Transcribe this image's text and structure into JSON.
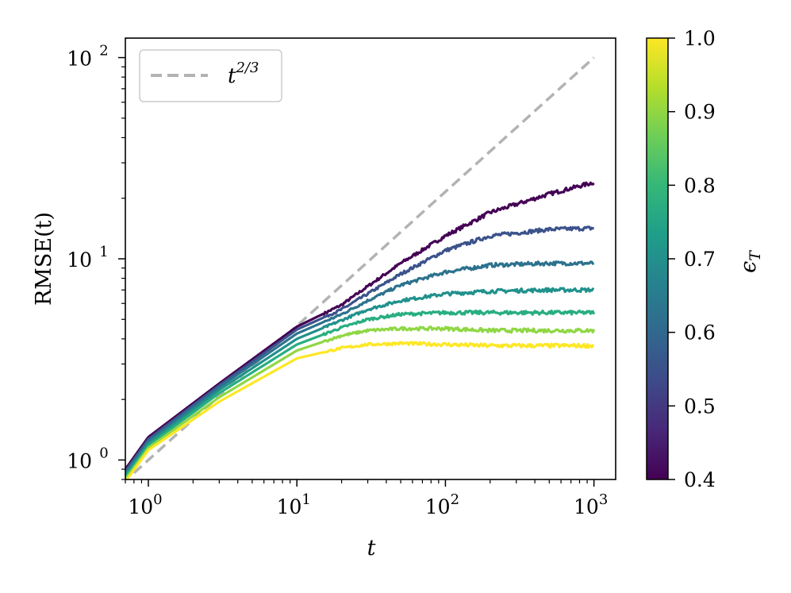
{
  "chart_data": {
    "type": "line",
    "xscale": "log",
    "yscale": "log",
    "xlim": [
      0.7,
      1400
    ],
    "ylim": [
      0.8,
      125
    ],
    "xlabel": "t",
    "ylabel": "RMSE(t)",
    "xticks": [
      {
        "value": 1,
        "label": "10",
        "exp": "0"
      },
      {
        "value": 10,
        "label": "10",
        "exp": "1"
      },
      {
        "value": 100,
        "label": "10",
        "exp": "2"
      },
      {
        "value": 1000,
        "label": "10",
        "exp": "3"
      }
    ],
    "yticks": [
      {
        "value": 1,
        "label": "10",
        "exp": "0"
      },
      {
        "value": 10,
        "label": "10",
        "exp": "1"
      },
      {
        "value": 100,
        "label": "10",
        "exp": "2"
      }
    ],
    "legend": {
      "position": "top-left",
      "entries": [
        {
          "label": "t",
          "exp": "2/3",
          "color": "#b3b3b3",
          "style": "dashed"
        }
      ]
    },
    "reference_line": {
      "name": "t^(2/3)",
      "exponent": 0.6667,
      "color": "#b3b3b3",
      "style": "dashed",
      "x": [
        0.8,
        1000
      ]
    },
    "colorbar": {
      "label": "ϵ",
      "label_sub": "T",
      "min": 0.4,
      "max": 1.0,
      "ticks": [
        "0.4",
        "0.5",
        "0.6",
        "0.7",
        "0.8",
        "0.9",
        "1.0"
      ],
      "colormap": "viridis",
      "stops": [
        "#440154",
        "#482878",
        "#3e4a89",
        "#31688e",
        "#26828e",
        "#1f9e89",
        "#35b779",
        "#6ece58",
        "#b5de2b",
        "#fde725"
      ]
    },
    "series": [
      {
        "eps": 0.4,
        "color": "#440154",
        "x": [
          0.7,
          1,
          3,
          10,
          20,
          30,
          50,
          100,
          200,
          500,
          1000
        ],
        "y": [
          0.9,
          1.3,
          2.4,
          4.6,
          5.9,
          7.3,
          9.5,
          13,
          17,
          21,
          24
        ]
      },
      {
        "eps": 0.5,
        "color": "#3b528b",
        "x": [
          0.7,
          1,
          3,
          10,
          20,
          30,
          50,
          100,
          200,
          500,
          1000
        ],
        "y": [
          0.88,
          1.27,
          2.35,
          4.45,
          5.6,
          6.7,
          8.4,
          11,
          13,
          14,
          14.2
        ]
      },
      {
        "eps": 0.6,
        "color": "#2c728e",
        "x": [
          0.7,
          1,
          3,
          10,
          20,
          30,
          50,
          100,
          200,
          500,
          1000
        ],
        "y": [
          0.86,
          1.24,
          2.3,
          4.25,
          5.3,
          6.2,
          7.4,
          8.6,
          9.3,
          9.5,
          9.5
        ]
      },
      {
        "eps": 0.7,
        "color": "#21918c",
        "x": [
          0.7,
          1,
          3,
          10,
          20,
          30,
          50,
          100,
          200,
          500,
          1000
        ],
        "y": [
          0.84,
          1.21,
          2.23,
          4.0,
          4.95,
          5.6,
          6.2,
          6.7,
          6.9,
          7.0,
          7.0
        ]
      },
      {
        "eps": 0.8,
        "color": "#28ae80",
        "x": [
          0.7,
          1,
          3,
          10,
          20,
          30,
          50,
          100,
          200,
          500,
          1000
        ],
        "y": [
          0.82,
          1.18,
          2.15,
          3.75,
          4.55,
          5.0,
          5.3,
          5.4,
          5.4,
          5.4,
          5.4
        ]
      },
      {
        "eps": 0.9,
        "color": "#8fd744",
        "x": [
          0.7,
          1,
          3,
          10,
          20,
          30,
          50,
          100,
          200,
          500,
          1000
        ],
        "y": [
          0.8,
          1.15,
          2.05,
          3.5,
          4.15,
          4.4,
          4.5,
          4.5,
          4.4,
          4.4,
          4.4
        ]
      },
      {
        "eps": 1.0,
        "color": "#fde725",
        "x": [
          0.7,
          1,
          3,
          10,
          20,
          30,
          50,
          100,
          200,
          500,
          1000
        ],
        "y": [
          0.78,
          1.12,
          1.95,
          3.2,
          3.6,
          3.75,
          3.8,
          3.75,
          3.7,
          3.7,
          3.7
        ]
      }
    ]
  }
}
